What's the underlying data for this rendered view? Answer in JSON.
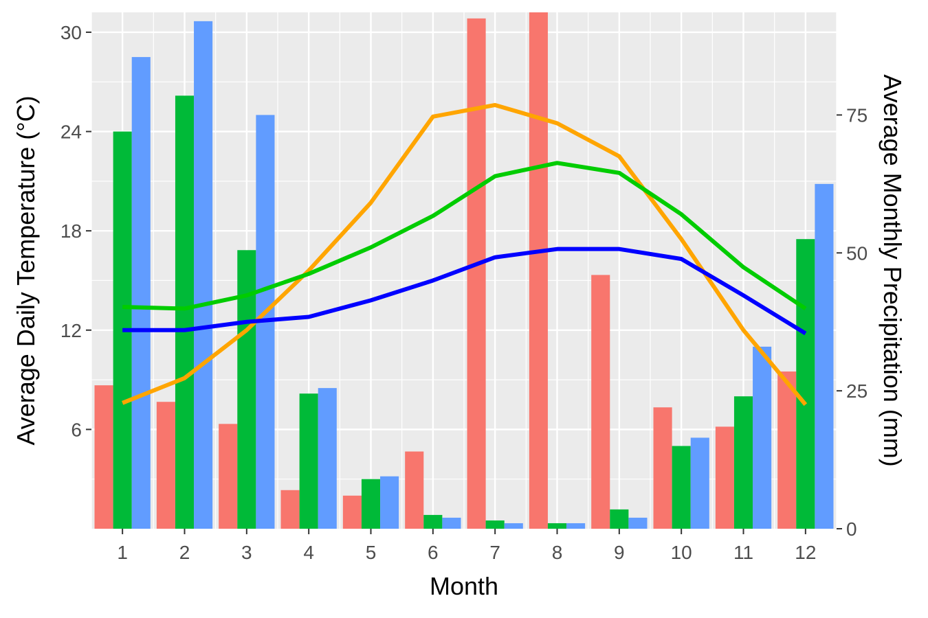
{
  "chart_data": {
    "type": "bar+line",
    "xlabel": "Month",
    "ylabel_left": "Average Daily Temperature (°C)",
    "ylabel_right": "Average Monthly Precipitation (mm)",
    "categories": [
      "1",
      "2",
      "3",
      "4",
      "5",
      "6",
      "7",
      "8",
      "9",
      "10",
      "11",
      "12"
    ],
    "y_left": {
      "range": [
        0,
        31.2
      ],
      "ticks": [
        "6",
        "12",
        "18",
        "24",
        "30"
      ],
      "tick_values": [
        6,
        12,
        18,
        24,
        30
      ]
    },
    "y_right": {
      "range": [
        0,
        93.6
      ],
      "ticks": [
        "0",
        "25",
        "50",
        "75"
      ],
      "tick_values": [
        0,
        25,
        50,
        75
      ]
    },
    "bar_series": [
      {
        "color": "#F8766D",
        "axis": "right",
        "values": [
          26,
          23,
          19,
          7,
          6,
          14,
          92.5,
          96,
          46,
          22,
          18.5,
          28.5
        ]
      },
      {
        "color": "#00BA38",
        "axis": "right",
        "values": [
          72,
          78.5,
          50.5,
          24.5,
          9,
          2.5,
          1.5,
          1,
          3.5,
          15,
          24,
          52.5
        ]
      },
      {
        "color": "#619CFF",
        "axis": "right",
        "values": [
          85.5,
          92,
          75,
          25.5,
          9.5,
          2,
          1,
          1,
          2,
          16.5,
          33,
          62.5
        ]
      }
    ],
    "line_series": [
      {
        "color": "#FFA500",
        "axis": "left",
        "values": [
          7.6,
          9.1,
          12.0,
          15.6,
          19.7,
          24.9,
          25.6,
          24.5,
          22.5,
          17.5,
          12.0,
          7.5
        ]
      },
      {
        "color": "#00CC00",
        "axis": "left",
        "values": [
          13.4,
          13.3,
          14.1,
          15.4,
          17.0,
          18.9,
          21.3,
          22.1,
          21.5,
          19.0,
          15.8,
          13.3
        ]
      },
      {
        "color": "#0000FF",
        "axis": "left",
        "values": [
          12.0,
          12.0,
          12.5,
          12.8,
          13.8,
          15.0,
          16.4,
          16.9,
          16.9,
          16.3,
          14.1,
          11.8
        ]
      }
    ],
    "grid": true,
    "legend": "none"
  }
}
